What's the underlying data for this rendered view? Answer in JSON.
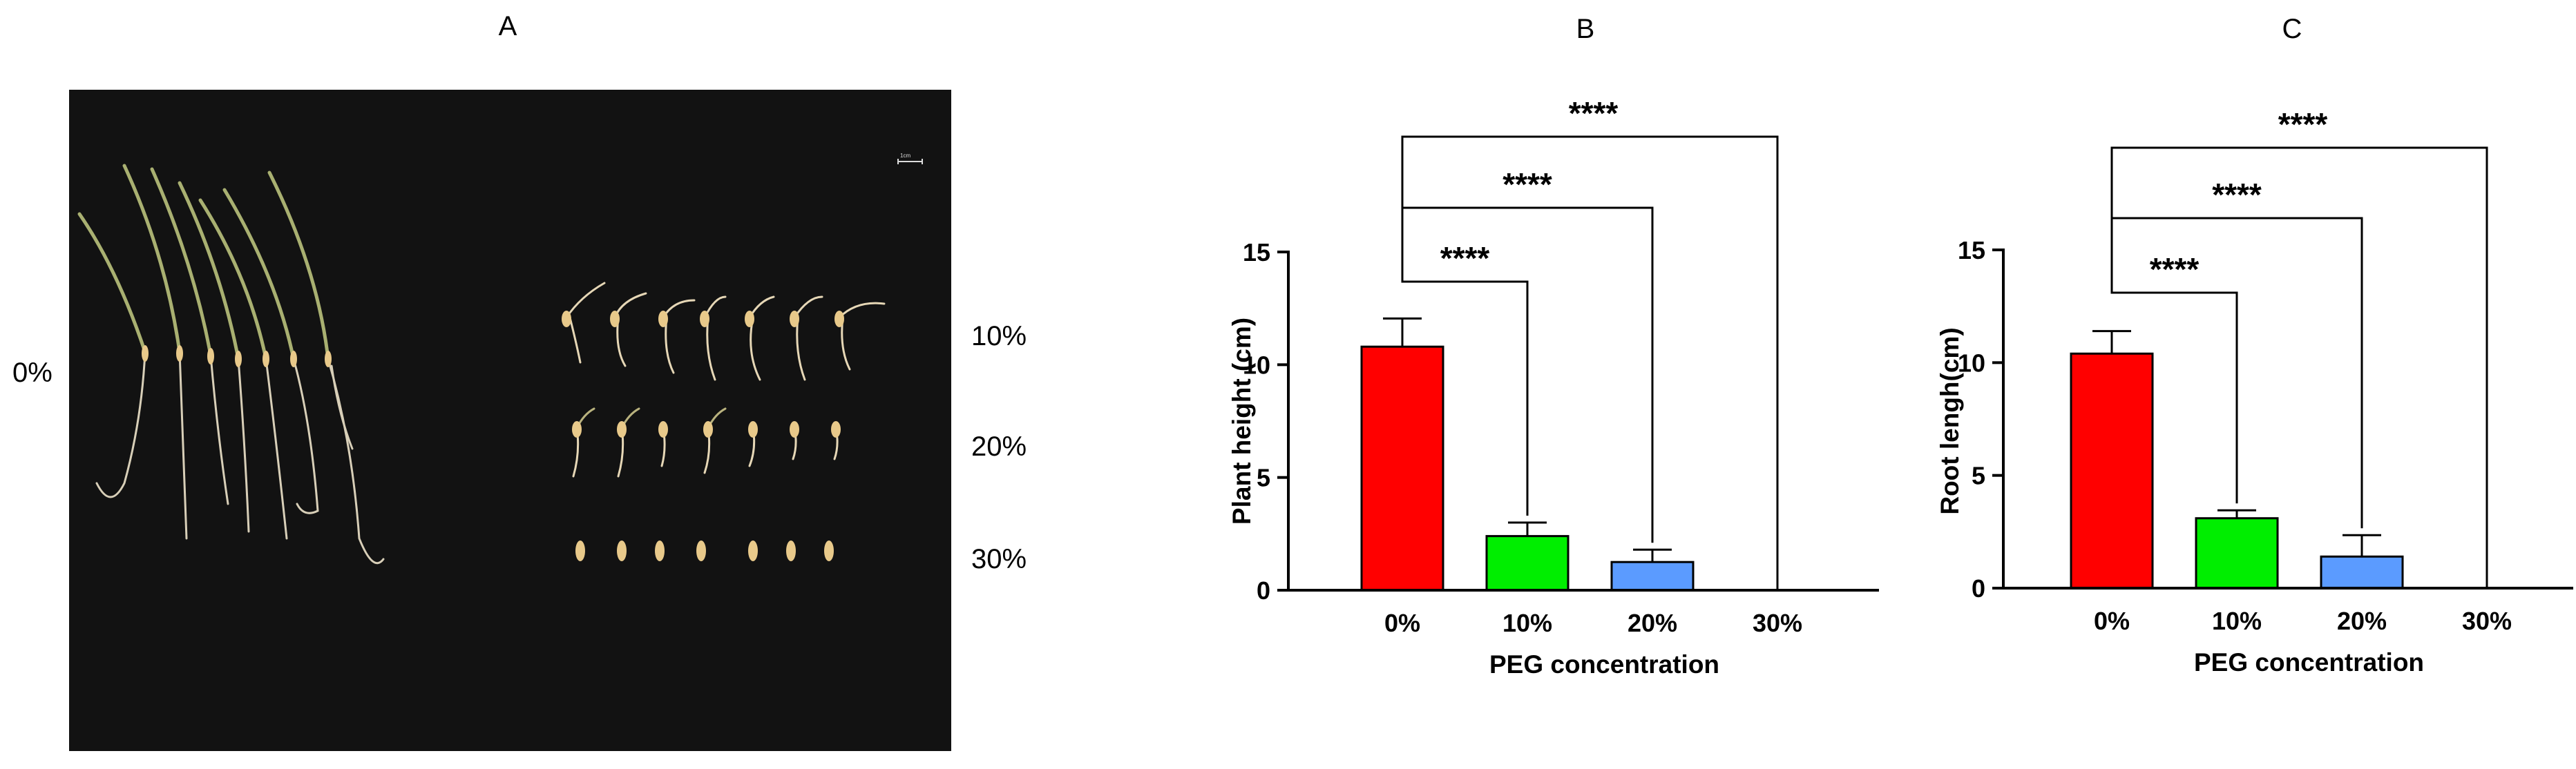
{
  "panel_labels": {
    "a": "A",
    "b": "B",
    "c": "C"
  },
  "photo": {
    "row_labels": {
      "control": "0%",
      "peg10": "10%",
      "peg20": "20%",
      "peg30": "30%"
    },
    "scale_bar_label": "1cm"
  },
  "colors": {
    "c0": "#ff0000",
    "c10": "#00ee00",
    "c20": "#5b9bff",
    "c30": "#5b9bff"
  },
  "chart_data": [
    {
      "type": "bar",
      "panel": "B",
      "categories": [
        "0%",
        "10%",
        "20%",
        "30%"
      ],
      "values": [
        10.8,
        2.4,
        1.25,
        0
      ],
      "errors": [
        1.25,
        0.6,
        0.55,
        0
      ],
      "xlabel": "PEG concentration",
      "ylabel": "Plant height (cm)",
      "ylim": [
        0,
        15
      ],
      "yticks": [
        "0",
        "5",
        "10",
        "15"
      ],
      "significance": [
        {
          "label": "****",
          "from": "0%",
          "to": "10%"
        },
        {
          "label": "****",
          "from": "0%",
          "to": "20%"
        },
        {
          "label": "****",
          "from": "0%",
          "to": "30%"
        }
      ]
    },
    {
      "type": "bar",
      "panel": "C",
      "categories": [
        "0%",
        "10%",
        "20%",
        "30%"
      ],
      "values": [
        10.4,
        3.1,
        1.4,
        0
      ],
      "errors": [
        1.0,
        0.35,
        0.95,
        0
      ],
      "xlabel": "PEG concentration",
      "ylabel": "Root lengh(cm)",
      "ylim": [
        0,
        15
      ],
      "yticks": [
        "0",
        "5",
        "10",
        "15"
      ],
      "significance": [
        {
          "label": "****",
          "from": "0%",
          "to": "10%"
        },
        {
          "label": "****",
          "from": "0%",
          "to": "20%"
        },
        {
          "label": "****",
          "from": "0%",
          "to": "30%"
        }
      ]
    }
  ]
}
